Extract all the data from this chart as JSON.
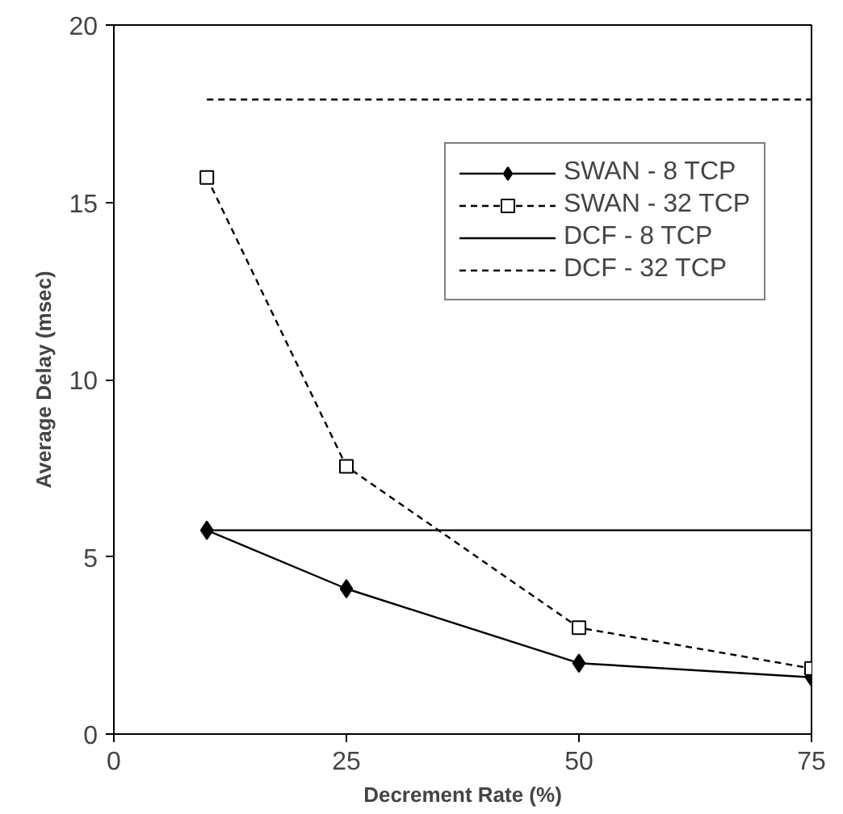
{
  "chart_data": {
    "type": "line",
    "xlabel": "Decrement Rate (%)",
    "ylabel": "Average Delay (msec)",
    "xlim": [
      0,
      75
    ],
    "xticks": [
      0,
      25,
      50,
      75
    ],
    "ylim": [
      0,
      20
    ],
    "yticks": [
      0,
      5,
      10,
      15,
      20
    ],
    "grid": false,
    "legend": "top right",
    "series": [
      {
        "name": "SWAN - 8 TCP",
        "color": "#000000",
        "x": [
          10,
          25,
          50,
          75
        ],
        "values": [
          5.75,
          4.1,
          2.0,
          1.6
        ],
        "marker": "diamond",
        "line_style": "solid"
      },
      {
        "name": "SWAN - 32 TCP",
        "color": "#000000",
        "x": [
          10,
          25,
          50,
          75
        ],
        "values": [
          15.7,
          7.55,
          3.0,
          1.85
        ],
        "marker": "square",
        "line_style": "dashed"
      },
      {
        "name": "DCF - 8 TCP",
        "color": "#000000",
        "x": [
          10,
          75
        ],
        "values": [
          5.75,
          5.75
        ],
        "marker": "none",
        "line_style": "solid"
      },
      {
        "name": "DCF - 32 TCP",
        "color": "#000000",
        "x": [
          10,
          75
        ],
        "values": [
          17.9,
          17.9
        ],
        "marker": "none",
        "line_style": "dashed"
      }
    ]
  }
}
